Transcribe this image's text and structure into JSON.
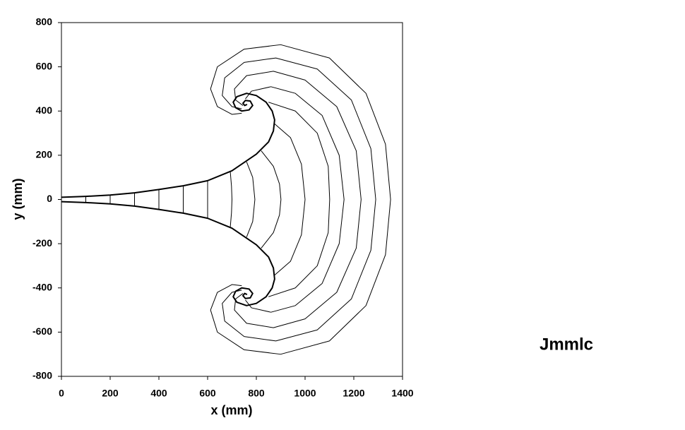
{
  "chart_data": {
    "type": "line",
    "annotation": "Jmmlc",
    "xlabel": "x   (mm)",
    "ylabel": "y   (mm)",
    "xlim": [
      0,
      1400
    ],
    "xticks": [
      0,
      200,
      400,
      600,
      800,
      1000,
      1200,
      1400
    ],
    "ylim": [
      -800,
      800
    ],
    "yticks": [
      -800,
      -600,
      -400,
      -200,
      0,
      200,
      400,
      600,
      800
    ],
    "grid": false,
    "series": [
      {
        "color": "#000000",
        "linewidth": 2,
        "x": [
          0,
          100,
          200,
          300,
          400,
          500,
          600,
          700,
          800,
          850,
          870,
          875,
          865,
          840,
          800,
          760,
          720,
          705,
          715,
          740,
          770,
          785,
          775,
          755,
          745,
          752,
          762,
          null,
          0,
          100,
          200,
          300,
          400,
          500,
          600,
          700,
          800,
          850,
          870,
          875,
          865,
          840,
          800,
          760,
          720,
          705,
          715,
          740,
          770,
          785,
          775,
          755,
          745,
          752,
          762
        ],
        "values": [
          10,
          14,
          20,
          30,
          45,
          62,
          85,
          130,
          205,
          260,
          310,
          360,
          400,
          440,
          470,
          480,
          465,
          440,
          415,
          400,
          405,
          425,
          445,
          448,
          435,
          425,
          430,
          null,
          -10,
          -14,
          -20,
          -30,
          -45,
          -62,
          -85,
          -130,
          -205,
          -260,
          -310,
          -360,
          -400,
          -440,
          -470,
          -480,
          -465,
          -440,
          -415,
          -400,
          -405,
          -425,
          -445,
          -448,
          -435,
          -425,
          -430
        ]
      },
      {
        "color": "#000000",
        "linewidth": 1,
        "x": [
          100,
          100,
          null,
          200,
          200,
          null,
          300,
          300,
          null,
          400,
          400,
          null,
          500,
          500,
          null,
          600,
          600,
          null,
          693,
          698,
          700,
          698,
          693,
          null,
          760,
          785,
          794,
          785,
          760,
          null,
          820,
          870,
          895,
          901,
          895,
          870,
          820,
          null,
          872,
          940,
          985,
          1000,
          985,
          940,
          872,
          null,
          850,
          960,
          1050,
          1095,
          1101,
          1095,
          1050,
          960,
          850,
          null,
          755,
          780,
          860,
          960,
          1070,
          1140,
          1160,
          1140,
          1070,
          960,
          860,
          780,
          755,
          null,
          745,
          715,
          710,
          760,
          870,
          1000,
          1130,
          1210,
          1230,
          1210,
          1130,
          1000,
          870,
          760,
          710,
          715,
          745,
          null,
          740,
          700,
          660,
          670,
          750,
          880,
          1050,
          1190,
          1270,
          1290,
          1270,
          1190,
          1050,
          880,
          750,
          670,
          660,
          700,
          740,
          null,
          740,
          700,
          640,
          612,
          640,
          750,
          900,
          1100,
          1250,
          1330,
          1351,
          1330,
          1250,
          1100,
          900,
          750,
          640,
          612,
          640,
          700,
          740
        ],
        "values": [
          14,
          -14,
          null,
          20,
          -20,
          null,
          30,
          -30,
          null,
          45,
          -45,
          null,
          62,
          -62,
          null,
          85,
          -85,
          null,
          125,
          60,
          0,
          -60,
          -125,
          null,
          170,
          100,
          0,
          -100,
          -170,
          null,
          220,
          150,
          70,
          0,
          -70,
          -150,
          -220,
          null,
          345,
          280,
          160,
          0,
          -160,
          -280,
          -345,
          null,
          440,
          400,
          300,
          150,
          0,
          -150,
          -300,
          -400,
          -440,
          null,
          455,
          490,
          510,
          480,
          380,
          200,
          0,
          -200,
          -380,
          -480,
          -510,
          -490,
          -455,
          null,
          425,
          450,
          500,
          560,
          580,
          540,
          420,
          220,
          0,
          -220,
          -420,
          -540,
          -580,
          -560,
          -500,
          -450,
          -425,
          null,
          410,
          420,
          470,
          550,
          620,
          640,
          590,
          450,
          230,
          0,
          -230,
          -450,
          -590,
          -640,
          -620,
          -550,
          -470,
          -420,
          -410,
          null,
          390,
          385,
          420,
          500,
          600,
          680,
          700,
          640,
          480,
          250,
          0,
          -250,
          -480,
          -640,
          -700,
          -680,
          -600,
          -500,
          -420,
          -385,
          -390
        ]
      }
    ]
  }
}
